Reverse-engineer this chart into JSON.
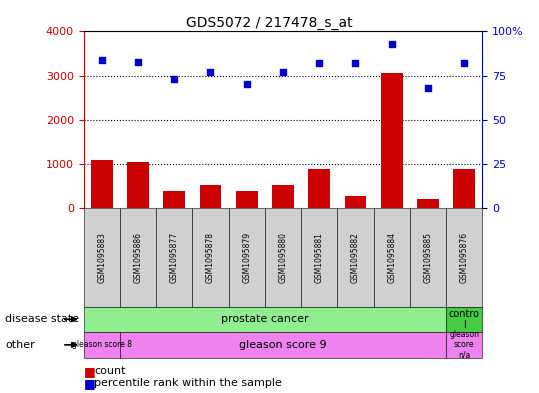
{
  "title": "GDS5072 / 217478_s_at",
  "samples": [
    "GSM1095883",
    "GSM1095886",
    "GSM1095877",
    "GSM1095878",
    "GSM1095879",
    "GSM1095880",
    "GSM1095881",
    "GSM1095882",
    "GSM1095884",
    "GSM1095885",
    "GSM1095876"
  ],
  "counts": [
    1100,
    1050,
    380,
    520,
    380,
    530,
    880,
    280,
    3050,
    200,
    880
  ],
  "percentile_ranks": [
    84,
    83,
    73,
    77,
    70,
    77,
    82,
    82,
    93,
    68,
    82
  ],
  "ylim_left": [
    0,
    4000
  ],
  "ylim_right": [
    0,
    100
  ],
  "yticks_left": [
    0,
    1000,
    2000,
    3000,
    4000
  ],
  "yticks_right": [
    0,
    25,
    50,
    75,
    100
  ],
  "bar_color": "#cc0000",
  "dot_color": "#0000cc",
  "axis_color_left": "#cc0000",
  "axis_color_right": "#0000cc",
  "background_color": "#ffffff",
  "gray_box_color": "#d0d0d0",
  "prostate_cancer_color": "#90ee90",
  "control_color": "#44cc44",
  "gleason_color": "#ee82ee"
}
